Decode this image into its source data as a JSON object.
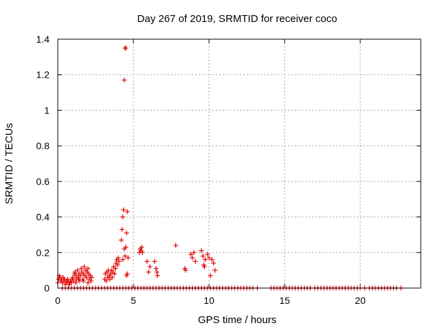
{
  "chart_data": {
    "type": "scatter",
    "title": "Day 267 of 2019, SRMTID for receiver coco",
    "xlabel": "GPS time / hours",
    "ylabel": "SRMTID / TECUs",
    "xlim": [
      0,
      24
    ],
    "ylim": [
      0,
      1.4
    ],
    "x_ticks": [
      0,
      5,
      10,
      15,
      20
    ],
    "x_tick_labels": [
      "0",
      "5",
      "10",
      "15",
      "20"
    ],
    "y_ticks": [
      0,
      0.2,
      0.4,
      0.6,
      0.8,
      1.0,
      1.2,
      1.4
    ],
    "y_tick_labels": [
      "0",
      "0.2",
      "0.4",
      "0.6",
      "0.8",
      "1",
      "1.2",
      "1.4"
    ],
    "grid": true,
    "marker": "+",
    "color": "#e00000",
    "series": [
      {
        "name": "coco",
        "points": [
          [
            0.0,
            0.03
          ],
          [
            0.05,
            0.05
          ],
          [
            0.1,
            0.07
          ],
          [
            0.15,
            0.06
          ],
          [
            0.2,
            0.04
          ],
          [
            0.25,
            0.05
          ],
          [
            0.3,
            0.03
          ],
          [
            0.35,
            0.06
          ],
          [
            0.4,
            0.04
          ],
          [
            0.45,
            0.05
          ],
          [
            0.5,
            0.02
          ],
          [
            0.55,
            0.04
          ],
          [
            0.6,
            0.03
          ],
          [
            0.65,
            0.05
          ],
          [
            0.7,
            0.04
          ],
          [
            0.75,
            0.02
          ],
          [
            0.8,
            0.03
          ],
          [
            0.85,
            0.04
          ],
          [
            0.9,
            0.03
          ],
          [
            0.95,
            0.05
          ],
          [
            1.0,
            0.06
          ],
          [
            1.05,
            0.04
          ],
          [
            1.1,
            0.08
          ],
          [
            1.15,
            0.09
          ],
          [
            1.2,
            0.07
          ],
          [
            1.25,
            0.05
          ],
          [
            1.3,
            0.1
          ],
          [
            1.35,
            0.06
          ],
          [
            1.4,
            0.08
          ],
          [
            1.45,
            0.04
          ],
          [
            1.5,
            0.07
          ],
          [
            1.55,
            0.11
          ],
          [
            1.6,
            0.09
          ],
          [
            1.65,
            0.05
          ],
          [
            1.7,
            0.08
          ],
          [
            1.75,
            0.12
          ],
          [
            1.8,
            0.07
          ],
          [
            1.85,
            0.1
          ],
          [
            1.9,
            0.06
          ],
          [
            1.95,
            0.09
          ],
          [
            2.0,
            0.11
          ],
          [
            2.05,
            0.08
          ],
          [
            2.1,
            0.05
          ],
          [
            2.15,
            0.07
          ],
          [
            2.2,
            0.04
          ],
          [
            2.25,
            0.06
          ],
          [
            1.2,
            0.03
          ],
          [
            1.4,
            0.05
          ],
          [
            1.7,
            0.04
          ],
          [
            2.0,
            0.03
          ],
          [
            0.3,
            0.0
          ],
          [
            0.5,
            0.0
          ],
          [
            0.7,
            0.0
          ],
          [
            0.9,
            0.0
          ],
          [
            1.1,
            0.0
          ],
          [
            1.3,
            0.0
          ],
          [
            1.5,
            0.0
          ],
          [
            1.7,
            0.0
          ],
          [
            1.9,
            0.0
          ],
          [
            2.1,
            0.0
          ],
          [
            2.3,
            0.0
          ],
          [
            2.5,
            0.0
          ],
          [
            2.7,
            0.0
          ],
          [
            2.9,
            0.0
          ],
          [
            3.1,
            0.0
          ],
          [
            3.3,
            0.0
          ],
          [
            3.5,
            0.0
          ],
          [
            3.7,
            0.0
          ],
          [
            3.9,
            0.0
          ],
          [
            4.1,
            0.0
          ],
          [
            3.1,
            0.05
          ],
          [
            3.15,
            0.08
          ],
          [
            3.2,
            0.04
          ],
          [
            3.25,
            0.09
          ],
          [
            3.3,
            0.06
          ],
          [
            3.35,
            0.1
          ],
          [
            3.4,
            0.07
          ],
          [
            3.45,
            0.05
          ],
          [
            3.5,
            0.08
          ],
          [
            3.55,
            0.1
          ],
          [
            3.6,
            0.06
          ],
          [
            3.65,
            0.09
          ],
          [
            3.7,
            0.12
          ],
          [
            3.75,
            0.08
          ],
          [
            3.8,
            0.11
          ],
          [
            3.85,
            0.14
          ],
          [
            3.9,
            0.16
          ],
          [
            3.95,
            0.13
          ],
          [
            4.0,
            0.17
          ],
          [
            4.05,
            0.15
          ],
          [
            4.2,
            0.27
          ],
          [
            4.25,
            0.33
          ],
          [
            4.3,
            0.4
          ],
          [
            4.35,
            0.44
          ],
          [
            4.4,
            0.22
          ],
          [
            4.45,
            0.18
          ],
          [
            4.5,
            0.23
          ],
          [
            4.55,
            0.31
          ],
          [
            4.6,
            0.43
          ],
          [
            4.65,
            0.17
          ],
          [
            4.55,
            0.07
          ],
          [
            4.6,
            0.08
          ],
          [
            4.4,
            1.17
          ],
          [
            4.45,
            1.35
          ],
          [
            4.5,
            1.35
          ],
          [
            4.3,
            0.16
          ],
          [
            5.4,
            0.2
          ],
          [
            5.45,
            0.22
          ],
          [
            5.5,
            0.21
          ],
          [
            5.55,
            0.23
          ],
          [
            5.6,
            0.2
          ],
          [
            5.9,
            0.15
          ],
          [
            6.0,
            0.09
          ],
          [
            6.1,
            0.12
          ],
          [
            6.4,
            0.15
          ],
          [
            6.5,
            0.11
          ],
          [
            6.55,
            0.09
          ],
          [
            6.6,
            0.07
          ],
          [
            7.8,
            0.24
          ],
          [
            8.4,
            0.11
          ],
          [
            8.45,
            0.1
          ],
          [
            8.8,
            0.19
          ],
          [
            8.9,
            0.17
          ],
          [
            9.0,
            0.2
          ],
          [
            9.1,
            0.15
          ],
          [
            9.5,
            0.21
          ],
          [
            9.6,
            0.18
          ],
          [
            9.65,
            0.13
          ],
          [
            9.7,
            0.12
          ],
          [
            9.75,
            0.16
          ],
          [
            9.9,
            0.19
          ],
          [
            10.0,
            0.17
          ],
          [
            10.1,
            0.07
          ],
          [
            10.2,
            0.16
          ],
          [
            10.3,
            0.14
          ],
          [
            10.4,
            0.1
          ],
          [
            4.3,
            0.0
          ],
          [
            4.5,
            0.0
          ],
          [
            4.7,
            0.0
          ],
          [
            4.9,
            0.0
          ],
          [
            5.1,
            0.0
          ],
          [
            5.3,
            0.0
          ],
          [
            5.5,
            0.0
          ],
          [
            5.7,
            0.0
          ],
          [
            5.9,
            0.0
          ],
          [
            6.1,
            0.0
          ],
          [
            6.3,
            0.0
          ],
          [
            6.5,
            0.0
          ],
          [
            6.7,
            0.0
          ],
          [
            6.9,
            0.0
          ],
          [
            7.1,
            0.0
          ],
          [
            7.3,
            0.0
          ],
          [
            7.5,
            0.0
          ],
          [
            7.7,
            0.0
          ],
          [
            7.9,
            0.0
          ],
          [
            8.1,
            0.0
          ],
          [
            8.3,
            0.0
          ],
          [
            8.5,
            0.0
          ],
          [
            8.7,
            0.0
          ],
          [
            8.9,
            0.0
          ],
          [
            9.1,
            0.0
          ],
          [
            9.3,
            0.0
          ],
          [
            9.5,
            0.0
          ],
          [
            9.7,
            0.0
          ],
          [
            9.9,
            0.0
          ],
          [
            10.1,
            0.0
          ],
          [
            10.3,
            0.0
          ],
          [
            10.5,
            0.0
          ],
          [
            10.7,
            0.0
          ],
          [
            10.9,
            0.0
          ],
          [
            11.1,
            0.0
          ],
          [
            11.3,
            0.0
          ],
          [
            11.5,
            0.0
          ],
          [
            11.7,
            0.0
          ],
          [
            11.9,
            0.0
          ],
          [
            12.1,
            0.0
          ],
          [
            12.3,
            0.0
          ],
          [
            12.5,
            0.0
          ],
          [
            12.7,
            0.0
          ],
          [
            12.9,
            0.0
          ],
          [
            13.2,
            0.0
          ],
          [
            14.1,
            0.0
          ],
          [
            14.3,
            0.0
          ],
          [
            14.5,
            0.0
          ],
          [
            14.7,
            0.0
          ],
          [
            14.9,
            0.0
          ],
          [
            15.1,
            0.0
          ],
          [
            15.3,
            0.0
          ],
          [
            15.5,
            0.0
          ],
          [
            15.7,
            0.0
          ],
          [
            15.9,
            0.0
          ],
          [
            16.1,
            0.0
          ],
          [
            16.3,
            0.0
          ],
          [
            16.5,
            0.0
          ],
          [
            16.7,
            0.0
          ],
          [
            17.0,
            0.0
          ],
          [
            17.2,
            0.0
          ],
          [
            17.4,
            0.0
          ],
          [
            17.6,
            0.0
          ],
          [
            17.8,
            0.0
          ],
          [
            18.0,
            0.0
          ],
          [
            18.2,
            0.0
          ],
          [
            18.4,
            0.0
          ],
          [
            18.6,
            0.0
          ],
          [
            18.8,
            0.0
          ],
          [
            19.0,
            0.0
          ],
          [
            19.2,
            0.0
          ],
          [
            19.4,
            0.0
          ],
          [
            19.6,
            0.0
          ],
          [
            19.8,
            0.0
          ],
          [
            20.0,
            0.0
          ],
          [
            20.3,
            0.0
          ],
          [
            20.6,
            0.0
          ],
          [
            20.8,
            0.0
          ],
          [
            21.0,
            0.0
          ],
          [
            21.2,
            0.0
          ],
          [
            21.4,
            0.0
          ],
          [
            21.6,
            0.0
          ],
          [
            21.8,
            0.0
          ],
          [
            22.0,
            0.0
          ],
          [
            22.2,
            0.0
          ],
          [
            22.4,
            0.0
          ],
          [
            22.7,
            0.0
          ]
        ]
      }
    ]
  }
}
